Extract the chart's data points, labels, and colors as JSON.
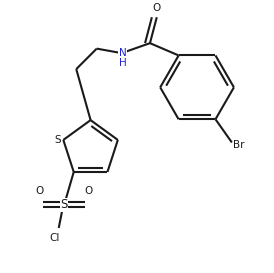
{
  "bg_color": "#ffffff",
  "line_color": "#1a1a1a",
  "n_color": "#2222cc",
  "lw": 1.5,
  "figsize": [
    2.74,
    2.73
  ],
  "dpi": 100,
  "xlim": [
    0,
    10
  ],
  "ylim": [
    0,
    10
  ]
}
